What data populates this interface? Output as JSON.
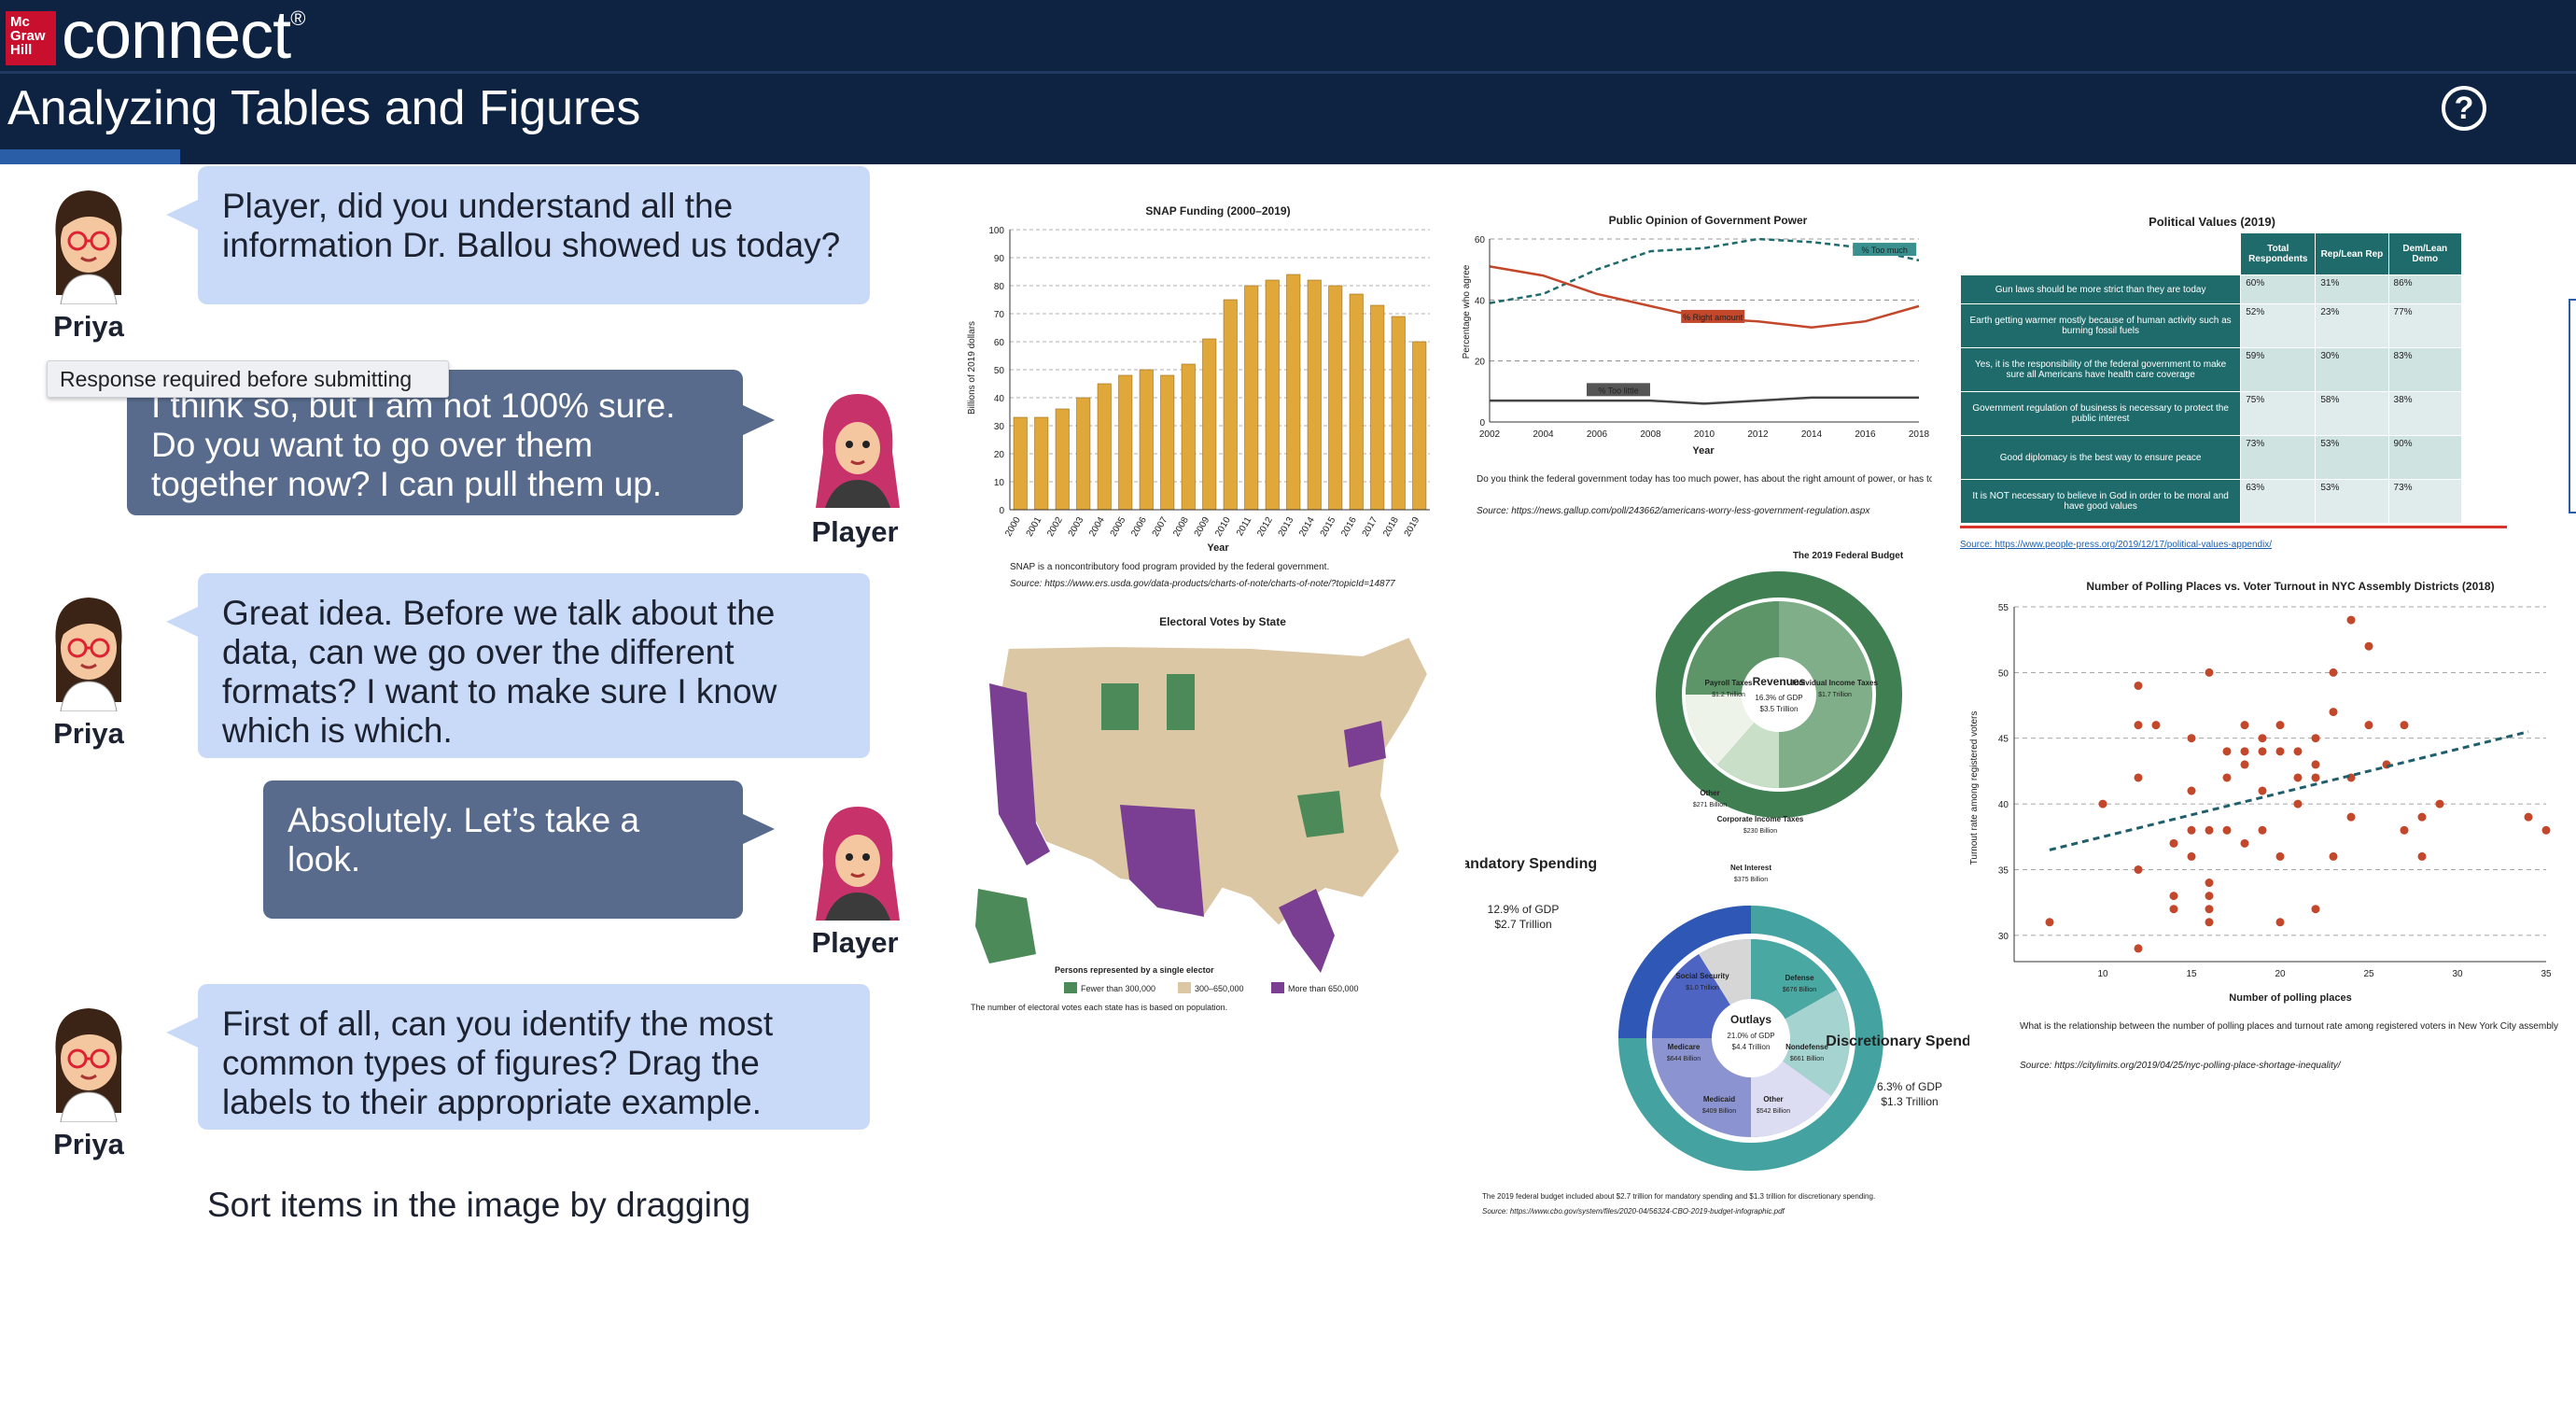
{
  "header": {
    "logo_text": "Mc Graw Hill",
    "brand": "connect",
    "trademark": "®",
    "title": "Analyzing Tables and Figures",
    "help_icon": "question-circle-icon"
  },
  "tooltip": "Response required before submitting",
  "instruction": "Sort items in the image by dragging",
  "dialogue": [
    {
      "speaker": "Priya",
      "text": "Player, did you understand all the information Dr. Ballou showed us today?"
    },
    {
      "speaker": "Player",
      "text": "I think so, but I am not 100% sure.  Do you want to go over them together now?  I can pull them up."
    },
    {
      "speaker": "Priya",
      "text": "Great idea.  Before we talk about the data, can we go over the different formats?  I want to make sure I know which is which."
    },
    {
      "speaker": "Player",
      "text": "Absolutely.  Let’s take a look."
    },
    {
      "speaker": "Priya",
      "text": "First of all, can you identify the most common types of figures? Drag the labels to their appropriate example."
    }
  ],
  "colors": {
    "navy": "#0e2341",
    "priya_bubble": "#c9daf8",
    "player_bubble": "#586b8c",
    "bar": "#e0a83a",
    "green": "#4d8a5a",
    "purple": "#7a3e93",
    "tan": "#dcc7a4",
    "teal": "#3a9c9a",
    "navy_blue": "#2f4f9e",
    "red_dot": "#c2472b"
  },
  "chart_data": [
    {
      "type": "bar",
      "title": "SNAP Funding (2000–2019)",
      "xlabel": "Year",
      "ylabel": "Billions of 2019 dollars",
      "ylim": [
        0,
        100
      ],
      "categories": [
        "2000",
        "2001",
        "2002",
        "2003",
        "2004",
        "2005",
        "2006",
        "2007",
        "2008",
        "2009",
        "2010",
        "2011",
        "2012",
        "2013",
        "2014",
        "2015",
        "2016",
        "2017",
        "2018",
        "2019"
      ],
      "values": [
        33,
        33,
        36,
        40,
        45,
        48,
        50,
        48,
        52,
        61,
        75,
        80,
        82,
        84,
        82,
        80,
        77,
        73,
        69,
        60
      ],
      "yticks": [
        "0",
        "10",
        "20",
        "30",
        "40",
        "50",
        "60",
        "70",
        "80",
        "90",
        "100"
      ],
      "note": "SNAP is a noncontributory food program provided by the federal government.",
      "source": "Source: https://www.ers.usda.gov/data-products/charts-of-note/charts-of-note/?topicId=14877"
    },
    {
      "type": "line",
      "title": "Public Opinion of Government Power",
      "xlabel": "Year",
      "ylabel": "Percentage who agree",
      "ylim": [
        0,
        60
      ],
      "x": [
        "2002",
        "2004",
        "2006",
        "2008",
        "2010",
        "2012",
        "2014",
        "2016",
        "2018"
      ],
      "series": [
        {
          "name": "% Too much",
          "values": [
            39,
            42,
            50,
            56,
            57,
            60,
            59,
            57,
            53
          ]
        },
        {
          "name": "% Right amount",
          "values": [
            51,
            48,
            42,
            38,
            34,
            33,
            31,
            33,
            38
          ]
        },
        {
          "name": "% Too little",
          "values": [
            7,
            7,
            7,
            7,
            6,
            7,
            8,
            8,
            8
          ]
        }
      ],
      "yticks": [
        "0",
        "20",
        "40",
        "60"
      ],
      "note": "Do you think the federal government today has too much power, has about the right amount of power, or has too little power?",
      "source": "Source: https://news.gallup.com/poll/243662/americans-worry-less-government-regulation.aspx"
    },
    {
      "type": "table",
      "title": "Political Values (2019)",
      "columns": [
        "",
        "Total Respondents",
        "Rep/Lean Rep",
        "Dem/Lean Demo"
      ],
      "rows": [
        [
          "Gun laws should be more strict than they are today",
          "60%",
          "31%",
          "86%"
        ],
        [
          "Earth getting warmer mostly because of human activity such as burning fossil fuels",
          "52%",
          "23%",
          "77%"
        ],
        [
          "Yes, it is the responsibility of the federal government to make sure all Americans have health care coverage",
          "59%",
          "30%",
          "83%"
        ],
        [
          "Government regulation of business is necessary to protect the public interest",
          "75%",
          "58%",
          "38%"
        ],
        [
          "Good diplomacy is the best way to ensure peace",
          "73%",
          "53%",
          "90%"
        ],
        [
          "It is NOT necessary to believe in God in order to be moral and have good values",
          "63%",
          "53%",
          "73%"
        ]
      ],
      "source": "Source: https://www.people-press.org/2019/12/17/political-values-appendix/"
    },
    {
      "type": "map",
      "title": "Electoral Votes by State",
      "legend": [
        "Fewer than 300,000",
        "300–650,000",
        "More than 650,000"
      ],
      "legend_title": "Persons represented by a single elector",
      "note": "The number of electoral votes each state has is based on population."
    },
    {
      "type": "pie",
      "title": "The 2019 Federal Budget",
      "revenues": {
        "label": "Revenues",
        "pct": "16.3% of GDP",
        "amount": "$3.5 Trillion",
        "slices": [
          {
            "name": "Payroll Taxes",
            "value": "$1.2 Trillion"
          },
          {
            "name": "Individual Income Taxes",
            "value": "$1.7 Trillion"
          },
          {
            "name": "Other",
            "value": "$271 Billion"
          },
          {
            "name": "Corporate Income Taxes",
            "value": "$230 Billion"
          }
        ]
      },
      "outlays": {
        "label": "Outlays",
        "pct": "21.0% of GDP",
        "amount": "$4.4 Trillion",
        "slices": [
          {
            "name": "Social Security",
            "value": "$1.0 Trillion"
          },
          {
            "name": "Defense",
            "value": "$676 Billion"
          },
          {
            "name": "Nondefense",
            "value": "$661 Billion"
          },
          {
            "name": "Other",
            "value": "$542 Billion"
          },
          {
            "name": "Medicaid",
            "value": "$409 Billion"
          },
          {
            "name": "Medicare",
            "value": "$644 Billion"
          },
          {
            "name": "Net Interest",
            "value": "$375 Billion"
          }
        ]
      },
      "mandatory": {
        "label": "Mandatory Spending",
        "pct": "12.9% of GDP",
        "amount": "$2.7 Trillion"
      },
      "discretionary": {
        "label": "Discretionary Spending",
        "pct": "6.3% of GDP",
        "amount": "$1.3 Trillion"
      },
      "note": "The 2019 federal budget included about $2.7 trillion for mandatory spending and $1.3 trillion for discretionary spending.",
      "source": "Source: https://www.cbo.gov/system/files/2020-04/56324-CBO-2019-budget-infographic.pdf"
    },
    {
      "type": "scatter",
      "title": "Number of Polling Places vs. Voter Turnout in NYC Assembly Districts (2018)",
      "xlabel": "Number of polling places",
      "ylabel": "Turnout rate among registered voters",
      "xlim": [
        5,
        35
      ],
      "ylim": [
        28,
        55
      ],
      "xticks": [
        "10",
        "15",
        "20",
        "25",
        "30",
        "35"
      ],
      "yticks": [
        "30",
        "35",
        "40",
        "45",
        "50",
        "55"
      ],
      "points": [
        [
          7,
          31
        ],
        [
          10,
          40
        ],
        [
          12,
          29
        ],
        [
          12,
          35
        ],
        [
          12,
          42
        ],
        [
          12,
          49
        ],
        [
          12,
          46
        ],
        [
          13,
          46
        ],
        [
          14,
          37
        ],
        [
          14,
          32
        ],
        [
          14,
          33
        ],
        [
          15,
          41
        ],
        [
          15,
          38
        ],
        [
          15,
          45
        ],
        [
          15,
          36
        ],
        [
          16,
          33
        ],
        [
          16,
          32
        ],
        [
          16,
          31
        ],
        [
          16,
          34
        ],
        [
          16,
          38
        ],
        [
          16,
          50
        ],
        [
          17,
          38
        ],
        [
          17,
          42
        ],
        [
          17,
          44
        ],
        [
          18,
          37
        ],
        [
          18,
          43
        ],
        [
          18,
          44
        ],
        [
          18,
          46
        ],
        [
          19,
          38
        ],
        [
          19,
          41
        ],
        [
          19,
          44
        ],
        [
          19,
          45
        ],
        [
          20,
          36
        ],
        [
          20,
          31
        ],
        [
          20,
          44
        ],
        [
          20,
          46
        ],
        [
          21,
          40
        ],
        [
          21,
          42
        ],
        [
          21,
          44
        ],
        [
          22,
          45
        ],
        [
          22,
          43
        ],
        [
          22,
          42
        ],
        [
          22,
          32
        ],
        [
          23,
          36
        ],
        [
          23,
          47
        ],
        [
          23,
          50
        ],
        [
          24,
          54
        ],
        [
          24,
          42
        ],
        [
          24,
          39
        ],
        [
          25,
          46
        ],
        [
          25,
          52
        ],
        [
          26,
          43
        ],
        [
          27,
          38
        ],
        [
          27,
          46
        ],
        [
          28,
          36
        ],
        [
          28,
          39
        ],
        [
          29,
          40
        ],
        [
          34,
          39
        ],
        [
          35,
          38
        ]
      ],
      "trend": [
        [
          7,
          36.5
        ],
        [
          34,
          45.5
        ]
      ],
      "note": "What is the relationship between the number of polling places and turnout rate among registered voters in New York City assembly districts?",
      "source": "Source: https://citylimits.org/2019/04/25/nyc-polling-place-shortage-inequality/"
    }
  ]
}
